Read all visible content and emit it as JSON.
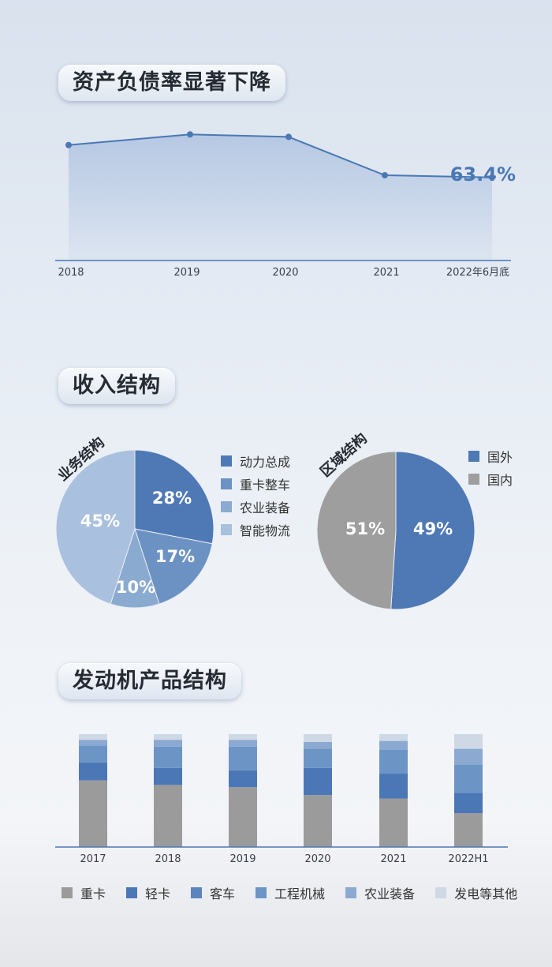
{
  "sections": {
    "debt_title": "资产负债率显著下降",
    "revenue_title": "收入结构",
    "engine_title": "发动机产品结构"
  },
  "colors": {
    "line": "#4a78b4",
    "area_top": "#b3c6e2",
    "area_bottom": "#dbe4f1",
    "pie_business": [
      "#4f79b5",
      "#6b92c2",
      "#8aaad0",
      "#a9c0de"
    ],
    "pie_region": [
      "#4f79b5",
      "#9e9e9e"
    ],
    "stack": [
      "#9b9b9b",
      "#4b77b6",
      "#5a85bd",
      "#6c95c6",
      "#8ba9d1",
      "#cfd9e6"
    ]
  },
  "chart_data": [
    {
      "type": "area",
      "title": "资产负债率显著下降",
      "categories": [
        "2018",
        "2019",
        "2020",
        "2021",
        "2022年6月底"
      ],
      "series": [
        {
          "values": [
            72.5,
            75.5,
            74.8,
            64.0,
            63.4
          ]
        }
      ],
      "ylim": [
        40,
        80
      ],
      "annotations": [
        {
          "category": "2022年6月底",
          "text": "63.4%"
        }
      ],
      "grid": false
    },
    {
      "type": "pie",
      "title": "业务结构",
      "labels": [
        "动力总成",
        "重卡整车",
        "农业装备",
        "智能物流"
      ],
      "values": [
        28,
        17,
        10,
        45
      ],
      "data_labels": [
        "28%",
        "17%",
        "10%",
        "45%"
      ],
      "legend": "right"
    },
    {
      "type": "pie",
      "title": "区域结构",
      "labels": [
        "国外",
        "国内"
      ],
      "values": [
        51,
        49
      ],
      "data_labels": [
        "51%",
        "49%"
      ],
      "legend": "right"
    },
    {
      "type": "bar",
      "stacked": true,
      "title": "发动机产品结构",
      "categories": [
        "2017",
        "2018",
        "2019",
        "2020",
        "2021",
        "2022H1"
      ],
      "series": [
        {
          "name": "重卡",
          "values": [
            59,
            55,
            53,
            46,
            43,
            30
          ]
        },
        {
          "name": "轻卡",
          "values": [
            16,
            15,
            15,
            24,
            22,
            18
          ]
        },
        {
          "name": "客车",
          "values": [
            0,
            0,
            0,
            0,
            0,
            0
          ]
        },
        {
          "name": "工程机械",
          "values": [
            15,
            19,
            21,
            17,
            21,
            25
          ]
        },
        {
          "name": "农业装备",
          "values": [
            5,
            6,
            6,
            6,
            8,
            14
          ]
        },
        {
          "name": "发电等其他",
          "values": [
            5,
            5,
            5,
            7,
            6,
            13
          ]
        }
      ],
      "ylim": [
        0,
        100
      ],
      "legend": "bottom"
    }
  ]
}
